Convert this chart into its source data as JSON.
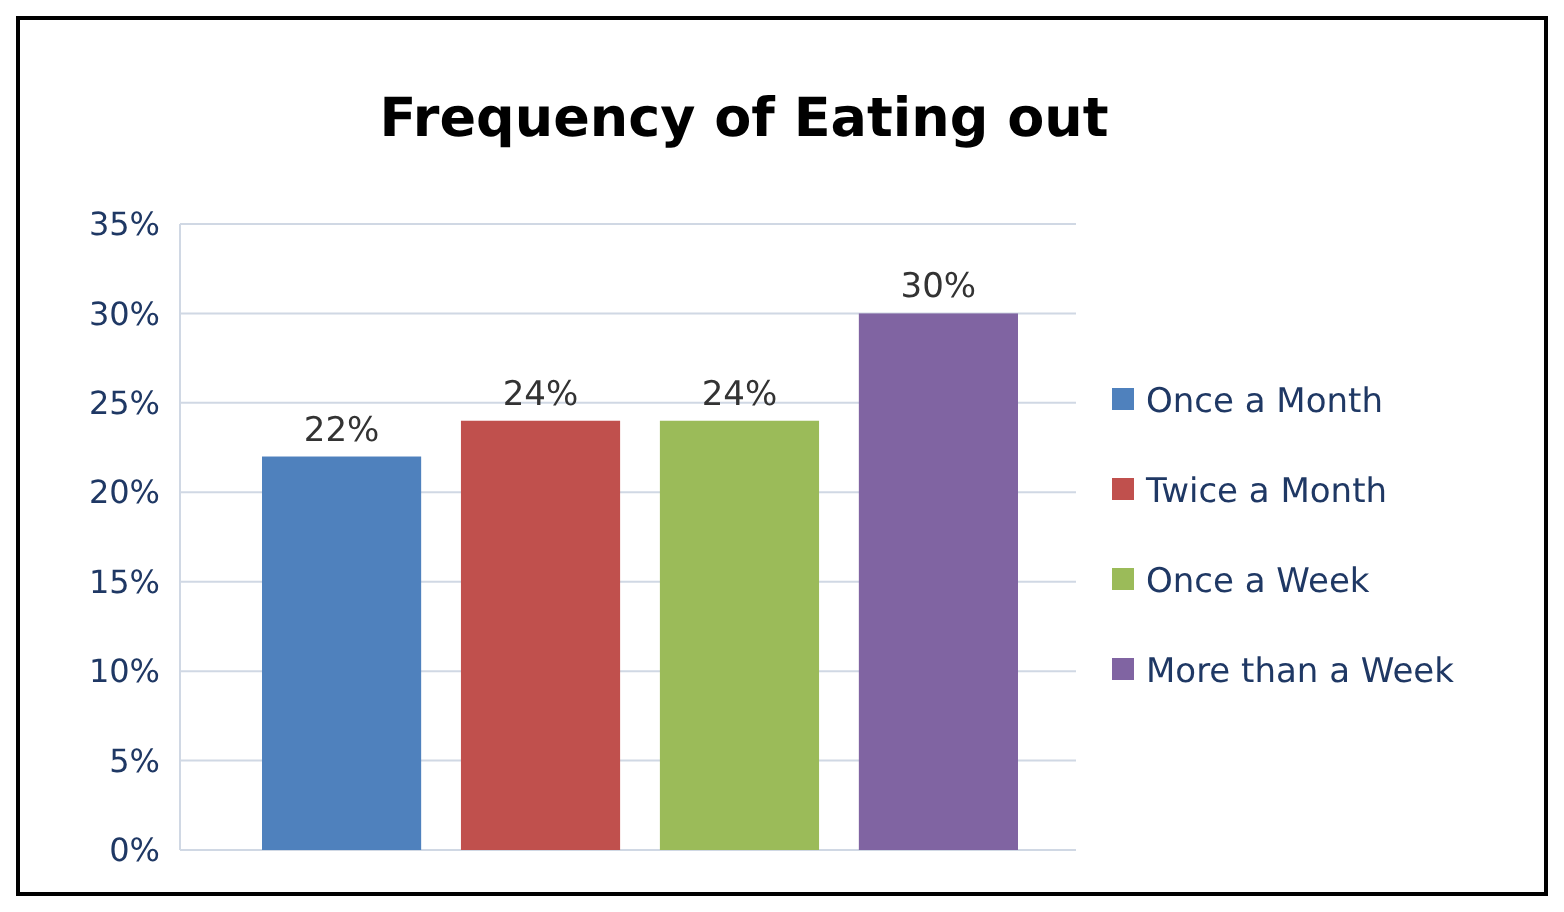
{
  "chart_data": {
    "type": "bar",
    "title": "Frequency of Eating out",
    "categories": [
      null
    ],
    "series": [
      {
        "name": "Once a Month",
        "color": "#4f81bd",
        "values": [
          22
        ],
        "value_labels": [
          "22%"
        ]
      },
      {
        "name": "Twice a Month",
        "color": "#c0504d",
        "values": [
          24
        ],
        "value_labels": [
          "24%"
        ]
      },
      {
        "name": "Once a Week",
        "color": "#9bbb59",
        "values": [
          24
        ],
        "value_labels": [
          "24%"
        ]
      },
      {
        "name": "More than a Week",
        "color": "#8064a2",
        "values": [
          30
        ],
        "value_labels": [
          "30%"
        ]
      }
    ],
    "ylim": [
      0,
      35
    ],
    "yticks": [
      {
        "value": 0,
        "label": "0%"
      },
      {
        "value": 5,
        "label": "5%"
      },
      {
        "value": 10,
        "label": "10%"
      },
      {
        "value": 15,
        "label": "15%"
      },
      {
        "value": 20,
        "label": "20%"
      },
      {
        "value": 25,
        "label": "25%"
      },
      {
        "value": 30,
        "label": "30%"
      },
      {
        "value": 35,
        "label": "35%"
      }
    ],
    "grid": "y",
    "legend": "right"
  }
}
